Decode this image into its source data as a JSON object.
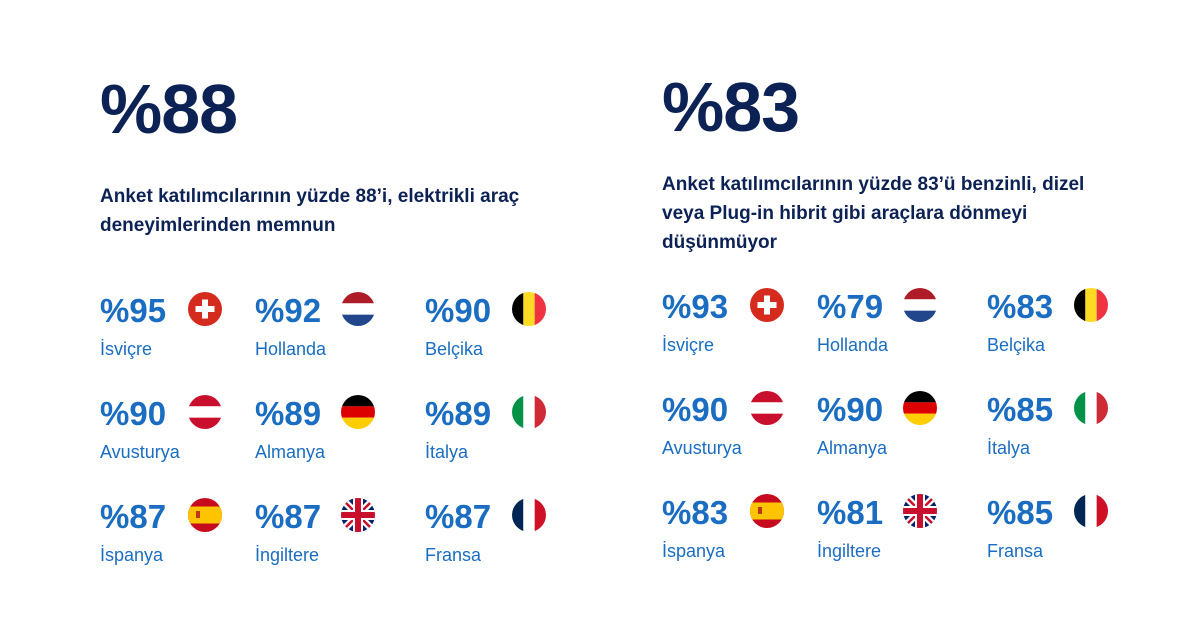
{
  "left_panel": {
    "headline": "%88",
    "description": "Anket katılımcılarının yüzde 88’i, elektrikli araç deneyimlerinden memnun",
    "countries": [
      {
        "value": "%95",
        "name": "İsviçre",
        "flag_icon": "switzerland-flag-icon"
      },
      {
        "value": "%92",
        "name": "Hollanda",
        "flag_icon": "netherlands-flag-icon"
      },
      {
        "value": "%90",
        "name": "Belçika",
        "flag_icon": "belgium-flag-icon"
      },
      {
        "value": "%90",
        "name": "Avusturya",
        "flag_icon": "austria-flag-icon"
      },
      {
        "value": "%89",
        "name": "Almanya",
        "flag_icon": "germany-flag-icon"
      },
      {
        "value": "%89",
        "name": "İtalya",
        "flag_icon": "italy-flag-icon"
      },
      {
        "value": "%87",
        "name": "İspanya",
        "flag_icon": "spain-flag-icon"
      },
      {
        "value": "%87",
        "name": "İngiltere",
        "flag_icon": "uk-flag-icon"
      },
      {
        "value": "%87",
        "name": "Fransa",
        "flag_icon": "france-flag-icon"
      }
    ]
  },
  "right_panel": {
    "headline": "%83",
    "description": "Anket katılımcılarının yüzde 83’ü benzinli, dizel veya Plug-in hibrit gibi araçlara dönmeyi düşünmüyor",
    "countries": [
      {
        "value": "%93",
        "name": "İsviçre",
        "flag_icon": "switzerland-flag-icon"
      },
      {
        "value": "%79",
        "name": "Hollanda",
        "flag_icon": "netherlands-flag-icon"
      },
      {
        "value": "%83",
        "name": "Belçika",
        "flag_icon": "belgium-flag-icon"
      },
      {
        "value": "%90",
        "name": "Avusturya",
        "flag_icon": "austria-flag-icon"
      },
      {
        "value": "%90",
        "name": "Almanya",
        "flag_icon": "germany-flag-icon"
      },
      {
        "value": "%85",
        "name": "İtalya",
        "flag_icon": "italy-flag-icon"
      },
      {
        "value": "%83",
        "name": "İspanya",
        "flag_icon": "spain-flag-icon"
      },
      {
        "value": "%81",
        "name": "İngiltere",
        "flag_icon": "uk-flag-icon"
      },
      {
        "value": "%85",
        "name": "Fransa",
        "flag_icon": "france-flag-icon"
      }
    ]
  },
  "colors": {
    "headline": "#0d2254",
    "accent": "#1a6dc0",
    "background": "#ffffff"
  }
}
